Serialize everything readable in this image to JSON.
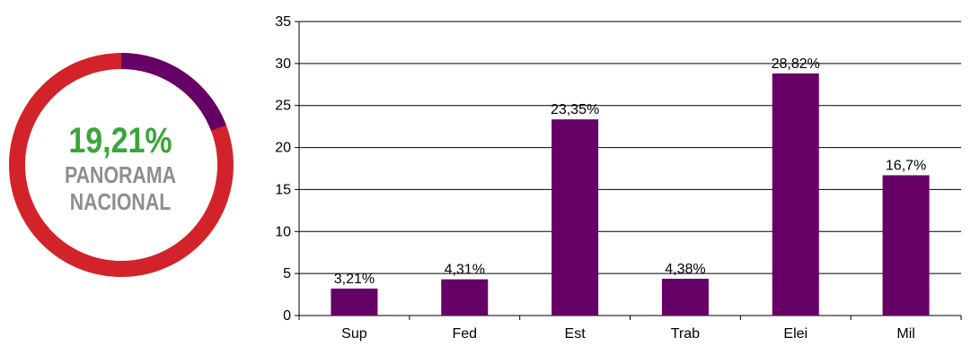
{
  "donut": {
    "value_label": "19,21%",
    "line1": "PANORAMA",
    "line2": "NACIONAL",
    "fraction": 0.1921,
    "color_highlight": "#660066",
    "color_rest": "#d2232a",
    "label_color": "#3aa63a"
  },
  "chart_data": {
    "type": "bar",
    "categories": [
      "Sup",
      "Fed",
      "Est",
      "Trab",
      "Elei",
      "Mil"
    ],
    "values": [
      3.21,
      4.31,
      23.35,
      4.38,
      28.82,
      16.7
    ],
    "data_labels": [
      "3,21%",
      "4,31%",
      "23,35%",
      "4,38%",
      "28,82%",
      "16,7%"
    ],
    "y_ticks": [
      "0",
      "5",
      "10",
      "15",
      "20",
      "25",
      "30",
      "35"
    ],
    "ylim": [
      0,
      35
    ],
    "grid": true,
    "bar_color": "#660066"
  }
}
